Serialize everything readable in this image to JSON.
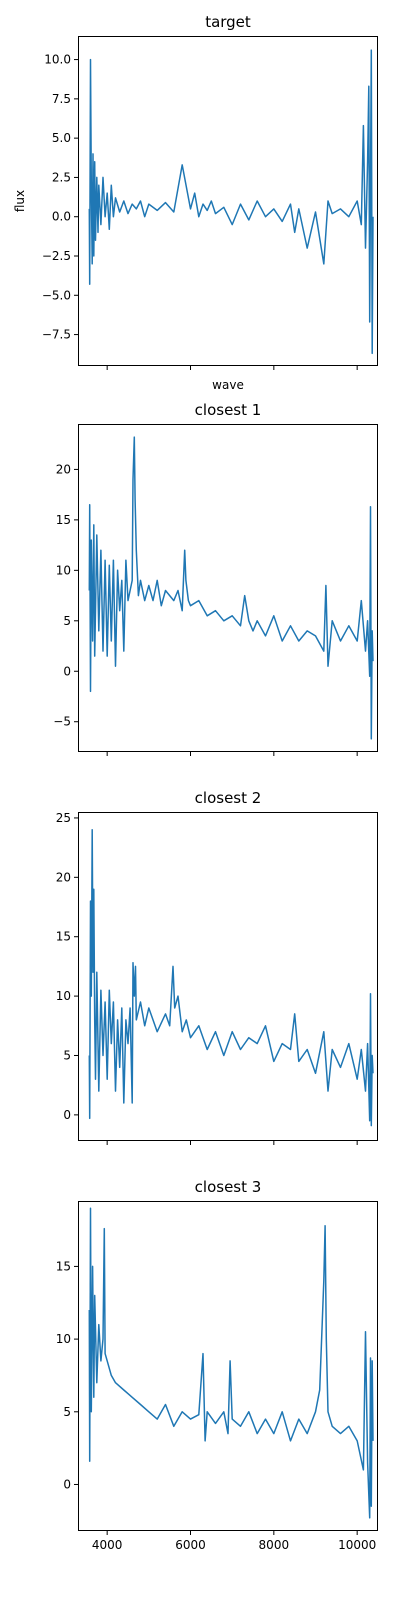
{
  "chart_data": [
    {
      "type": "line",
      "title": "target",
      "xlabel": "wave",
      "ylabel": "flux",
      "xlim": [
        3300,
        10500
      ],
      "ylim": [
        -9.5,
        11.5
      ],
      "xticks": [
        4000,
        6000,
        8000,
        10000
      ],
      "show_xtick_labels": false,
      "yticks": [
        -7.5,
        -5.0,
        -2.5,
        0.0,
        2.5,
        5.0,
        7.5,
        10.0
      ],
      "ytick_labels": [
        "−7.5",
        "−5.0",
        "−2.5",
        "0.0",
        "2.5",
        "5.0",
        "7.5",
        "10.0"
      ],
      "color": "#1f77b4",
      "series": [
        {
          "x": [
            3570,
            3580,
            3600,
            3620,
            3640,
            3660,
            3680,
            3700,
            3720,
            3750,
            3780,
            3800,
            3850,
            3900,
            3950,
            4000,
            4050,
            4100,
            4150,
            4200,
            4300,
            4400,
            4500,
            4600,
            4700,
            4800,
            4900,
            5000,
            5200,
            5400,
            5600,
            5800,
            6000,
            6100,
            6200,
            6300,
            6400,
            6500,
            6600,
            6800,
            7000,
            7200,
            7400,
            7600,
            7800,
            8000,
            8200,
            8400,
            8500,
            8600,
            8800,
            9000,
            9200,
            9300,
            9400,
            9600,
            9800,
            10000,
            10100,
            10150,
            10200,
            10250,
            10280,
            10300,
            10320,
            10340,
            10360,
            10380
          ],
          "y": [
            0.5,
            -4.3,
            10.0,
            2.0,
            -3.0,
            4.0,
            -2.5,
            3.5,
            -1.5,
            2.5,
            -1.0,
            2.0,
            -0.5,
            2.5,
            0.0,
            1.5,
            -0.8,
            2.0,
            0.0,
            1.2,
            0.3,
            1.0,
            0.2,
            0.8,
            0.5,
            1.0,
            0.0,
            0.8,
            0.4,
            0.9,
            0.3,
            3.3,
            0.5,
            1.5,
            0.0,
            0.8,
            0.4,
            1.0,
            0.2,
            0.6,
            -0.5,
            0.8,
            -0.2,
            1.0,
            0.0,
            0.5,
            -0.3,
            0.8,
            -1.0,
            0.5,
            -2.0,
            0.3,
            -3.0,
            1.0,
            0.2,
            0.5,
            0.0,
            1.0,
            -0.5,
            5.8,
            -2.0,
            3.5,
            8.3,
            -6.7,
            2.0,
            10.6,
            -8.7,
            0.0
          ]
        }
      ]
    },
    {
      "type": "line",
      "title": "closest 1",
      "xlabel": "",
      "ylabel": "",
      "xlim": [
        3300,
        10500
      ],
      "ylim": [
        -8,
        24.5
      ],
      "xticks": [
        4000,
        6000,
        8000,
        10000
      ],
      "show_xtick_labels": false,
      "yticks": [
        -5,
        0,
        5,
        10,
        15,
        20
      ],
      "ytick_labels": [
        "−5",
        "0",
        "5",
        "10",
        "15",
        "20"
      ],
      "color": "#1f77b4",
      "series": [
        {
          "x": [
            3570,
            3580,
            3600,
            3620,
            3650,
            3680,
            3700,
            3750,
            3800,
            3850,
            3900,
            3950,
            4000,
            4050,
            4100,
            4150,
            4200,
            4250,
            4300,
            4350,
            4400,
            4450,
            4500,
            4550,
            4600,
            4620,
            4650,
            4670,
            4700,
            4750,
            4800,
            4900,
            5000,
            5100,
            5200,
            5300,
            5400,
            5500,
            5600,
            5700,
            5800,
            5860,
            5890,
            5950,
            6000,
            6200,
            6400,
            6600,
            6800,
            7000,
            7200,
            7300,
            7400,
            7500,
            7600,
            7800,
            8000,
            8200,
            8400,
            8600,
            8800,
            9000,
            9200,
            9250,
            9300,
            9400,
            9600,
            9800,
            10000,
            10100,
            10200,
            10250,
            10300,
            10320,
            10340,
            10360,
            10380
          ],
          "y": [
            8.0,
            16.5,
            -2.0,
            13.0,
            3.0,
            14.5,
            1.5,
            13.5,
            4.0,
            12.0,
            2.0,
            11.0,
            1.5,
            10.5,
            3.0,
            11.0,
            0.5,
            10.0,
            6.0,
            9.0,
            2.0,
            11.0,
            7.0,
            8.0,
            9.0,
            19.0,
            23.2,
            17.0,
            12.0,
            7.5,
            9.0,
            7.0,
            8.5,
            7.0,
            9.0,
            6.5,
            8.0,
            7.5,
            7.0,
            8.0,
            6.0,
            12.0,
            9.0,
            7.0,
            6.5,
            7.0,
            5.5,
            6.0,
            5.0,
            5.5,
            4.5,
            7.5,
            5.0,
            4.0,
            5.0,
            3.5,
            5.5,
            3.0,
            4.5,
            3.0,
            4.0,
            3.5,
            2.0,
            8.5,
            0.5,
            5.0,
            3.0,
            4.5,
            3.0,
            7.0,
            2.0,
            5.0,
            -0.5,
            16.3,
            -6.7,
            4.0,
            1.0
          ]
        }
      ]
    },
    {
      "type": "line",
      "title": "closest 2",
      "xlabel": "",
      "ylabel": "",
      "xlim": [
        3300,
        10500
      ],
      "ylim": [
        -2.2,
        25.5
      ],
      "xticks": [
        4000,
        6000,
        8000,
        10000
      ],
      "show_xtick_labels": false,
      "yticks": [
        0,
        5,
        10,
        15,
        20,
        25
      ],
      "ytick_labels": [
        "0",
        "5",
        "10",
        "15",
        "20",
        "25"
      ],
      "color": "#1f77b4",
      "series": [
        {
          "x": [
            3570,
            3580,
            3600,
            3620,
            3640,
            3660,
            3680,
            3700,
            3720,
            3750,
            3800,
            3850,
            3900,
            3950,
            4000,
            4050,
            4100,
            4150,
            4200,
            4250,
            4300,
            4350,
            4400,
            4450,
            4500,
            4550,
            4600,
            4620,
            4650,
            4680,
            4700,
            4800,
            4900,
            5000,
            5200,
            5400,
            5500,
            5580,
            5620,
            5700,
            5800,
            5900,
            6000,
            6200,
            6400,
            6600,
            6800,
            7000,
            7200,
            7400,
            7600,
            7800,
            8000,
            8200,
            8400,
            8500,
            8600,
            8800,
            9000,
            9200,
            9300,
            9400,
            9600,
            9800,
            10000,
            10100,
            10200,
            10250,
            10300,
            10320,
            10340,
            10360,
            10380
          ],
          "y": [
            5.0,
            -0.3,
            18.0,
            10.0,
            24.0,
            12.0,
            19.0,
            8.0,
            3.0,
            12.0,
            2.0,
            10.5,
            5.0,
            9.5,
            3.0,
            10.5,
            6.0,
            9.5,
            2.0,
            8.0,
            4.0,
            9.0,
            1.0,
            8.0,
            6.0,
            9.0,
            1.0,
            12.8,
            10.0,
            12.5,
            8.0,
            9.5,
            7.5,
            9.0,
            7.0,
            8.5,
            7.5,
            12.5,
            9.0,
            10.0,
            7.0,
            8.0,
            6.5,
            7.5,
            5.5,
            7.0,
            5.0,
            7.0,
            5.5,
            6.5,
            6.0,
            7.5,
            4.5,
            6.0,
            5.5,
            8.5,
            4.5,
            5.5,
            3.5,
            7.0,
            2.0,
            5.5,
            4.0,
            6.0,
            3.0,
            5.5,
            2.0,
            6.0,
            -0.5,
            10.2,
            -0.9,
            5.0,
            3.5
          ]
        }
      ]
    },
    {
      "type": "line",
      "title": "closest 3",
      "xlabel": "",
      "ylabel": "",
      "xlim": [
        3300,
        10500
      ],
      "ylim": [
        -3.2,
        19.5
      ],
      "xticks": [
        4000,
        6000,
        8000,
        10000
      ],
      "show_xtick_labels": true,
      "xtick_labels": [
        "4000",
        "6000",
        "8000",
        "10000"
      ],
      "yticks": [
        0,
        5,
        10,
        15
      ],
      "ytick_labels": [
        "0",
        "5",
        "10",
        "15"
      ],
      "color": "#1f77b4",
      "series": [
        {
          "x": [
            3570,
            3580,
            3600,
            3620,
            3650,
            3680,
            3700,
            3750,
            3800,
            3850,
            3900,
            3930,
            3950,
            4000,
            4100,
            4200,
            4400,
            4600,
            4800,
            5000,
            5200,
            5400,
            5600,
            5800,
            6000,
            6200,
            6300,
            6350,
            6400,
            6600,
            6800,
            6900,
            6950,
            7000,
            7200,
            7400,
            7600,
            7800,
            8000,
            8200,
            8400,
            8600,
            8800,
            9000,
            9100,
            9200,
            9230,
            9260,
            9300,
            9400,
            9600,
            9800,
            10000,
            10150,
            10200,
            10250,
            10300,
            10320,
            10340,
            10360,
            10380
          ],
          "y": [
            12.0,
            1.6,
            19.0,
            5.0,
            15.0,
            6.0,
            13.0,
            7.0,
            11.0,
            8.5,
            10.0,
            17.6,
            9.0,
            8.5,
            7.5,
            7.0,
            6.5,
            6.0,
            5.5,
            5.0,
            4.5,
            5.5,
            4.0,
            5.0,
            4.5,
            4.8,
            9.0,
            3.0,
            5.0,
            4.2,
            5.0,
            3.5,
            8.5,
            4.5,
            4.0,
            5.0,
            3.5,
            4.5,
            3.5,
            5.0,
            3.0,
            4.5,
            3.5,
            5.0,
            6.5,
            14.0,
            17.8,
            10.0,
            5.0,
            4.0,
            3.5,
            4.0,
            3.0,
            1.0,
            10.5,
            1.5,
            -2.3,
            8.7,
            -1.5,
            8.5,
            3.0
          ]
        }
      ]
    }
  ]
}
